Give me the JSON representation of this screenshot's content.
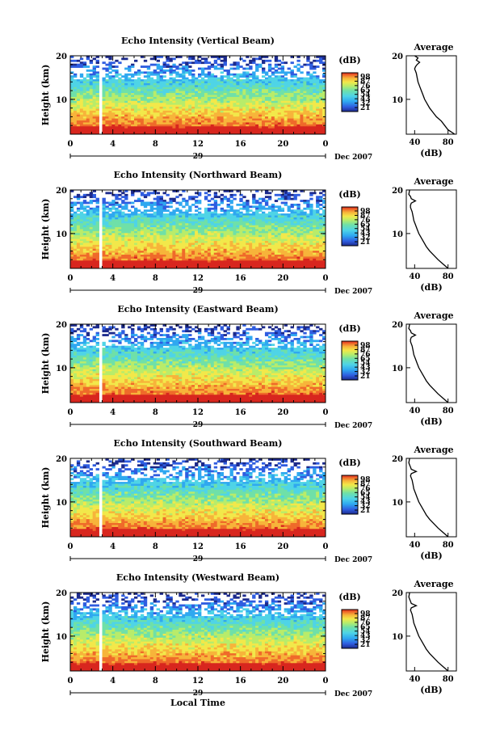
{
  "chart_data": [
    {
      "type": "heatmap",
      "title": "Echo Intensity (Vertical Beam)",
      "ylabel": "Height (km)",
      "ylim": [
        2,
        20
      ],
      "y_ticks": [
        "10",
        "20"
      ],
      "x_ticks": [
        "0",
        "4",
        "8",
        "12",
        "16",
        "20",
        "0"
      ],
      "xlim": [
        0,
        24
      ],
      "day_label": "29",
      "date_label": "Dec 2007",
      "colorbar": {
        "label": "(dB)",
        "ticks": [
          "98",
          "87",
          "76",
          "65",
          "54",
          "43",
          "32",
          "21"
        ]
      },
      "data_gap_hours": [
        2.5,
        2.9
      ],
      "description_series": [
        {
          "name": "Average",
          "xlabel": "(dB)",
          "x_ticks": [
            "40",
            "80"
          ],
          "ylim": [
            2,
            20
          ],
          "y_ticks": [
            "10",
            "20"
          ],
          "x": [
            88,
            80,
            76,
            72,
            66,
            62,
            58,
            55,
            52,
            50,
            48,
            46,
            44,
            43,
            42,
            41,
            40,
            41,
            43,
            46,
            42,
            44,
            40
          ],
          "y": [
            2,
            3,
            4,
            5,
            6,
            7,
            8,
            9,
            10,
            11,
            12,
            13,
            14,
            15,
            16,
            16.5,
            17,
            17.5,
            18,
            18.5,
            19,
            19.5,
            20
          ]
        }
      ]
    },
    {
      "type": "heatmap",
      "title": "Echo Intensity (Northward Beam)",
      "ylabel": "Height (km)",
      "ylim": [
        2,
        20
      ],
      "y_ticks": [
        "10",
        "20"
      ],
      "x_ticks": [
        "0",
        "4",
        "8",
        "12",
        "16",
        "20",
        "0"
      ],
      "xlim": [
        0,
        24
      ],
      "day_label": "29",
      "date_label": "Dec 2007",
      "colorbar": {
        "label": "(dB)",
        "ticks": [
          "98",
          "87",
          "76",
          "65",
          "54",
          "43",
          "32",
          "21"
        ]
      },
      "data_gap_hours": [
        2.5,
        2.9
      ],
      "description_series": [
        {
          "name": "Average",
          "xlabel": "(dB)",
          "x_ticks": [
            "40",
            "80"
          ],
          "ylim": [
            2,
            20
          ],
          "y_ticks": [
            "10",
            "20"
          ],
          "x": [
            80,
            74,
            68,
            63,
            58,
            54,
            51,
            48,
            45,
            43,
            41,
            39,
            38,
            37,
            36,
            35,
            35,
            36,
            41,
            36,
            35,
            33,
            34
          ],
          "y": [
            2,
            3,
            4,
            5,
            6,
            7,
            8,
            9,
            10,
            11,
            12,
            13,
            14,
            15,
            15.5,
            16,
            16.5,
            17,
            17.5,
            18,
            18.5,
            19,
            20
          ]
        }
      ]
    },
    {
      "type": "heatmap",
      "title": "Echo Intensity (Eastward Beam)",
      "ylabel": "Height (km)",
      "ylim": [
        2,
        20
      ],
      "y_ticks": [
        "10",
        "20"
      ],
      "x_ticks": [
        "0",
        "4",
        "8",
        "12",
        "16",
        "20",
        "0"
      ],
      "xlim": [
        0,
        24
      ],
      "day_label": "29",
      "date_label": "Dec 2007",
      "colorbar": {
        "label": "(dB)",
        "ticks": [
          "98",
          "87",
          "76",
          "65",
          "54",
          "43",
          "32",
          "21"
        ]
      },
      "data_gap_hours": [
        2.5,
        2.9
      ],
      "description_series": [
        {
          "name": "Average",
          "xlabel": "(dB)",
          "x_ticks": [
            "40",
            "80"
          ],
          "ylim": [
            2,
            20
          ],
          "y_ticks": [
            "10",
            "20"
          ],
          "x": [
            80,
            74,
            68,
            63,
            58,
            54,
            51,
            48,
            45,
            43,
            41,
            39,
            38,
            37,
            36,
            35,
            35,
            36,
            41,
            36,
            35,
            33,
            34
          ],
          "y": [
            2,
            3,
            4,
            5,
            6,
            7,
            8,
            9,
            10,
            11,
            12,
            13,
            14,
            15,
            15.5,
            16,
            16.5,
            17,
            17.5,
            18,
            18.5,
            19,
            20
          ]
        }
      ]
    },
    {
      "type": "heatmap",
      "title": "Echo Intensity (Southward Beam)",
      "ylabel": "Height (km)",
      "ylim": [
        2,
        20
      ],
      "y_ticks": [
        "10",
        "20"
      ],
      "x_ticks": [
        "0",
        "4",
        "8",
        "12",
        "16",
        "20",
        "0"
      ],
      "xlim": [
        0,
        24
      ],
      "day_label": "29",
      "date_label": "Dec 2007",
      "colorbar": {
        "label": "(dB)",
        "ticks": [
          "98",
          "87",
          "76",
          "65",
          "54",
          "43",
          "32",
          "21"
        ]
      },
      "data_gap_hours": [
        2.5,
        2.9
      ],
      "description_series": [
        {
          "name": "Average",
          "xlabel": "(dB)",
          "x_ticks": [
            "40",
            "80"
          ],
          "ylim": [
            2,
            20
          ],
          "y_ticks": [
            "10",
            "20"
          ],
          "x": [
            80,
            74,
            68,
            63,
            58,
            54,
            51,
            48,
            45,
            43,
            41,
            39,
            38,
            37,
            36,
            35,
            36,
            42,
            36,
            35,
            34,
            33,
            34
          ],
          "y": [
            2,
            3,
            4,
            5,
            6,
            7,
            8,
            9,
            10,
            11,
            12,
            13,
            14,
            15,
            15.5,
            16,
            16.5,
            17,
            17.5,
            18,
            18.5,
            19,
            20
          ]
        }
      ]
    },
    {
      "type": "heatmap",
      "title": "Echo Intensity (Westward Beam)",
      "ylabel": "Height (km)",
      "ylim": [
        2,
        20
      ],
      "y_ticks": [
        "10",
        "20"
      ],
      "x_ticks": [
        "0",
        "4",
        "8",
        "12",
        "16",
        "20",
        "0"
      ],
      "xlim": [
        0,
        24
      ],
      "day_label": "29",
      "date_label": "Dec 2007",
      "xlabel": "Local Time",
      "colorbar": {
        "label": "(dB)",
        "ticks": [
          "98",
          "87",
          "76",
          "65",
          "54",
          "43",
          "32",
          "21"
        ]
      },
      "data_gap_hours": [
        2.5,
        2.9
      ],
      "description_series": [
        {
          "name": "Average",
          "xlabel": "(dB)",
          "x_ticks": [
            "40",
            "80"
          ],
          "ylim": [
            2,
            20
          ],
          "y_ticks": [
            "10",
            "20"
          ],
          "x": [
            80,
            74,
            68,
            63,
            58,
            54,
            51,
            48,
            45,
            43,
            41,
            39,
            38,
            37,
            36,
            35,
            36,
            42,
            36,
            35,
            34,
            33,
            34
          ],
          "y": [
            2,
            3,
            4,
            5,
            6,
            7,
            8,
            9,
            10,
            11,
            12,
            13,
            14,
            15,
            15.5,
            16,
            16.5,
            17,
            17.5,
            18,
            18.5,
            19,
            20
          ]
        }
      ]
    }
  ],
  "colors": {
    "scale": [
      "#1c2a8c",
      "#2f5de0",
      "#2fa8f0",
      "#4fd4e6",
      "#6fe0a8",
      "#b8ec6a",
      "#f2e84a",
      "#f7b43a",
      "#ef6a2a",
      "#d8261e"
    ],
    "axis": "#000000"
  }
}
